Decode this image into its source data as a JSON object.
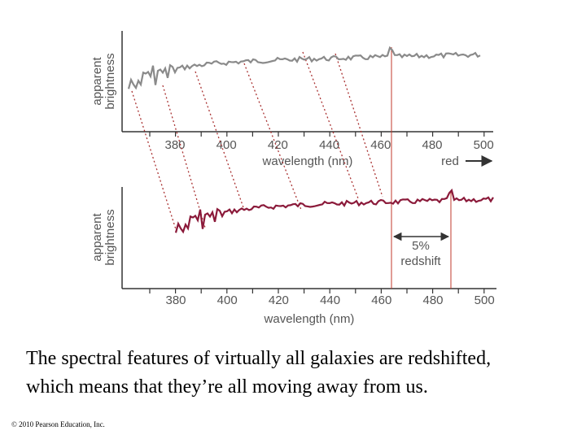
{
  "figure": {
    "top_panel": {
      "y_label": [
        "apparent",
        "brightness"
      ],
      "x_ticks": [
        "380",
        "400",
        "420",
        "440",
        "460",
        "480",
        "500"
      ],
      "x_label": "wavelength (nm)",
      "direction_label": "red"
    },
    "bottom_panel": {
      "y_label": [
        "apparent",
        "brightness"
      ],
      "x_ticks": [
        "380",
        "400",
        "420",
        "440",
        "460",
        "480",
        "500"
      ],
      "x_label": "wavelength (nm)"
    },
    "annotation": [
      "5%",
      "redshift"
    ]
  },
  "caption": [
    "The spectral features of virtually all galaxies are redshifted,",
    "which means that they’re all moving away from us."
  ],
  "copyright": "© 2010 Pearson Education, Inc."
}
